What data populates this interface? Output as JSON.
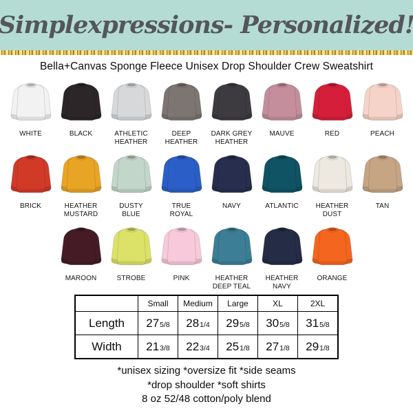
{
  "theme": {
    "banner_bg": "#b4dcd4",
    "script_color": "#54565a",
    "glitter_gold": "#c9a13b",
    "text_color": "#111111"
  },
  "header": {
    "brand_script": "Simplexpressions- Personalized!"
  },
  "product_title": "Bella+Canvas Sponge Fleece Unisex Drop Shoulder Crew Sweatshirt",
  "color_rows": [
    [
      {
        "label": "WHITE",
        "hex": "#f2f2f2"
      },
      {
        "label": "BLACK",
        "hex": "#2c2629"
      },
      {
        "label": "ATHLETIC\nHEATHER",
        "hex": "#d6d8da"
      },
      {
        "label": "DEEP\nHEATHER",
        "hex": "#7c7571"
      },
      {
        "label": "DARK GREY\nHEATHER",
        "hex": "#3d3b3f"
      },
      {
        "label": "MAUVE",
        "hex": "#c48e9d"
      },
      {
        "label": "RED",
        "hex": "#d51f3a"
      },
      {
        "label": "PEACH",
        "hex": "#f6d3c9"
      }
    ],
    [
      {
        "label": "BRICK",
        "hex": "#d23a28"
      },
      {
        "label": "HEATHER\nMUSTARD",
        "hex": "#e8a425"
      },
      {
        "label": "DUSTY\nBLUE",
        "hex": "#c2d6c9"
      },
      {
        "label": "TRUE\nROYAL",
        "hex": "#2b5fc7"
      },
      {
        "label": "NAVY",
        "hex": "#272e4e"
      },
      {
        "label": "ATLANTIC",
        "hex": "#0f5364"
      },
      {
        "label": "HEATHER\nDUST",
        "hex": "#ede8e0"
      },
      {
        "label": "TAN",
        "hex": "#c5a584"
      }
    ],
    [
      {
        "label": "MAROON",
        "hex": "#451c26"
      },
      {
        "label": "STROBE",
        "hex": "#dce267"
      },
      {
        "label": "PINK",
        "hex": "#f8c9da"
      },
      {
        "label": "HEATHER\nDEEP TEAL",
        "hex": "#3b7e95"
      },
      {
        "label": "HEATHER\nNAVY",
        "hex": "#252c45"
      },
      {
        "label": "ORANGE",
        "hex": "#f4661f"
      }
    ]
  ],
  "size_chart": {
    "corner_label": "",
    "columns": [
      "Small",
      "Medium",
      "Large",
      "XL",
      "2XL"
    ],
    "rows": [
      {
        "label": "Length",
        "values": [
          {
            "whole": "27",
            "frac": "5/8"
          },
          {
            "whole": "28",
            "frac": "1/4"
          },
          {
            "whole": "29",
            "frac": "5/8"
          },
          {
            "whole": "30",
            "frac": "5/8"
          },
          {
            "whole": "31",
            "frac": "5/8"
          }
        ]
      },
      {
        "label": "Width",
        "values": [
          {
            "whole": "21",
            "frac": "3/8"
          },
          {
            "whole": "22",
            "frac": "3/4"
          },
          {
            "whole": "25",
            "frac": "1/8"
          },
          {
            "whole": "27",
            "frac": "1/8"
          },
          {
            "whole": "29",
            "frac": "1/8"
          }
        ]
      }
    ]
  },
  "footer_lines": [
    "*unisex sizing *oversize fit *side seams",
    "*drop shoulder *soft shirts",
    "8 oz 52/48 cotton/poly blend"
  ]
}
